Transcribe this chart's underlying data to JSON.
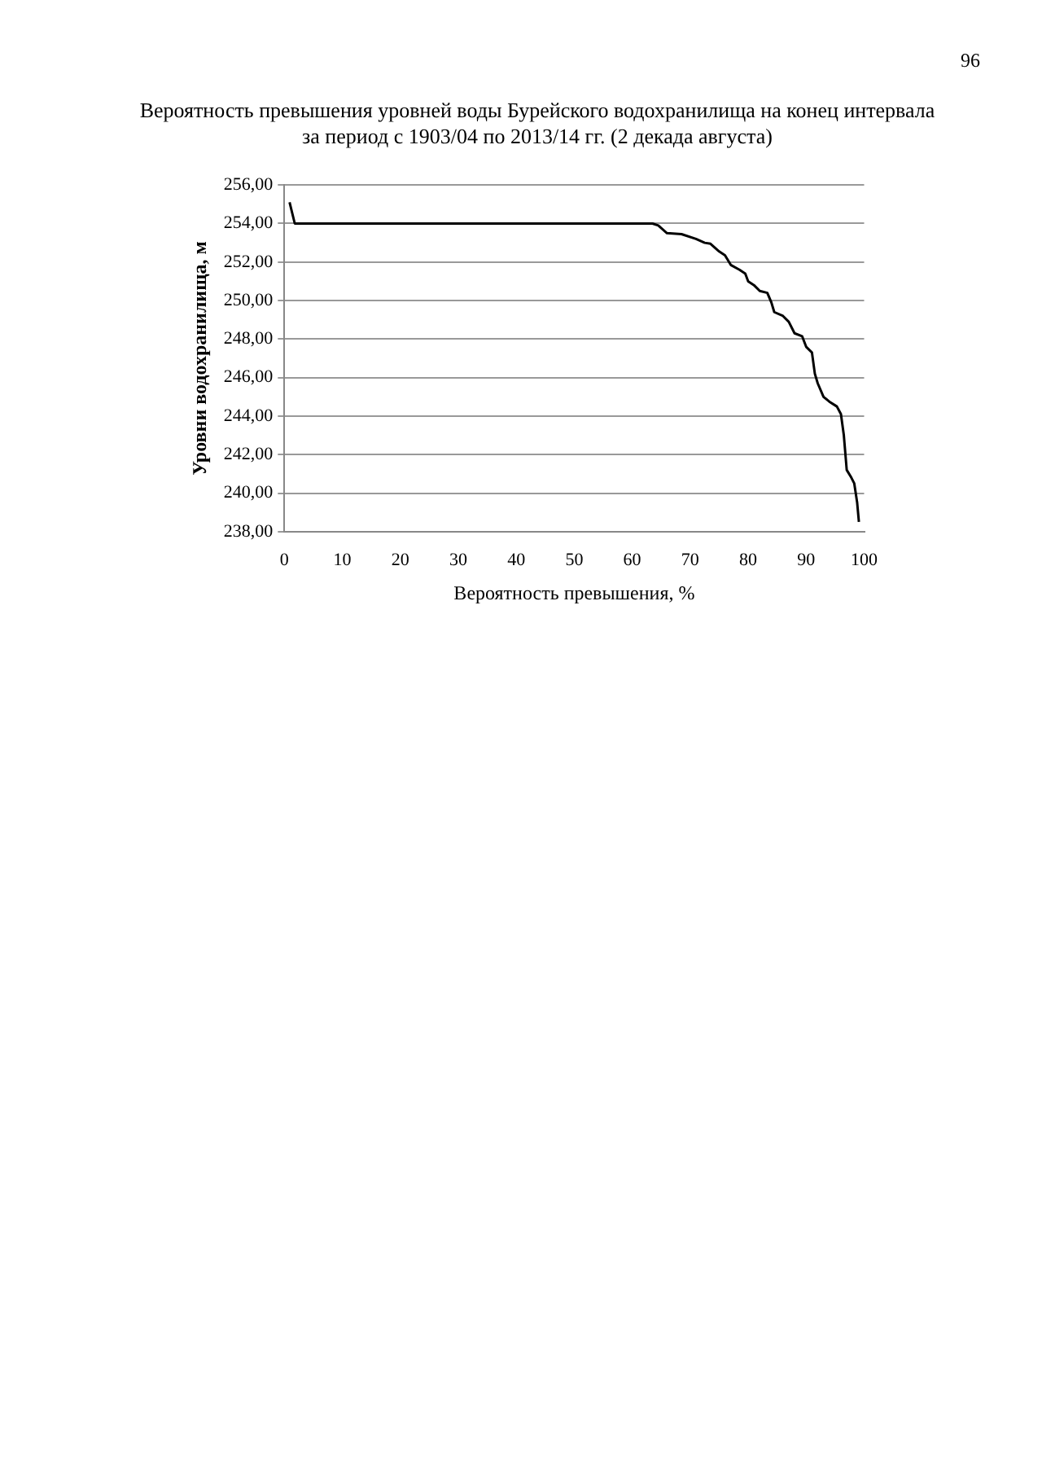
{
  "chart_data": {
    "type": "line",
    "title": "Вероятность превышения уровней воды Бурейского водохранилища на конец интервала за период с 1903/04 по 2013/14 гг. (2 декада августа)",
    "xlabel": "Вероятность превышения, %",
    "ylabel": "Уровни водохранилища, м",
    "annotations": [
      "96"
    ],
    "series": [
      {
        "color": "#000000",
        "x": [
          0.9,
          1.8,
          63.5,
          64.5,
          66,
          68.5,
          71,
          72.5,
          73.5,
          75,
          76,
          77,
          78.5,
          79.5,
          80,
          81,
          82,
          83.3,
          84,
          84.5,
          86,
          87,
          88,
          89.3,
          90,
          91,
          91.5,
          92,
          93,
          94,
          95.3,
          96,
          96.5,
          97,
          97.8,
          98.3,
          98.8,
          99.1
        ],
        "values": [
          255.1,
          254.0,
          254.0,
          253.9,
          253.5,
          253.45,
          253.2,
          253.0,
          252.95,
          252.55,
          252.35,
          251.85,
          251.6,
          251.4,
          251.0,
          250.8,
          250.5,
          250.4,
          249.9,
          249.4,
          249.2,
          248.9,
          248.3,
          248.15,
          247.6,
          247.3,
          246.2,
          245.7,
          245.0,
          244.75,
          244.5,
          244.1,
          243.0,
          241.2,
          240.8,
          240.5,
          239.5,
          238.5
        ]
      }
    ],
    "xlim": [
      0,
      100
    ],
    "xticks": [
      0,
      10,
      20,
      30,
      40,
      50,
      60,
      70,
      80,
      90,
      100
    ],
    "ylim": [
      238,
      256
    ],
    "yticks": [
      {
        "value": 238,
        "label": "238,00"
      },
      {
        "value": 240,
        "label": "240,00"
      },
      {
        "value": 242,
        "label": "242,00"
      },
      {
        "value": 244,
        "label": "244,00"
      },
      {
        "value": 246,
        "label": "246,00"
      },
      {
        "value": 248,
        "label": "248,00"
      },
      {
        "value": 250,
        "label": "250,00"
      },
      {
        "value": 252,
        "label": "252,00"
      },
      {
        "value": 254,
        "label": "254,00"
      },
      {
        "value": 256,
        "label": "256,00"
      }
    ],
    "grid": "y",
    "marker": "none",
    "line_style": "solid"
  }
}
